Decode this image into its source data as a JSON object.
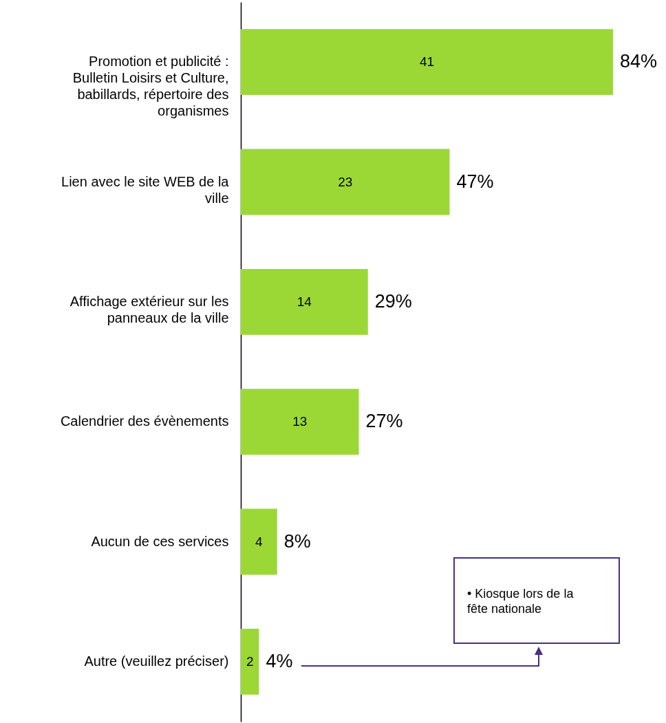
{
  "chart_data": {
    "type": "bar",
    "orientation": "horizontal",
    "categories": [
      "Promotion et publicité : Bulletin Loisirs et Culture, babillards, répertoire des organismes",
      "Lien avec le site WEB de la ville",
      "Affichage extérieur sur les panneaux de la ville",
      "Calendrier des évènements",
      "Aucun de ces services",
      "Autre (veuillez préciser)"
    ],
    "values": [
      41,
      23,
      14,
      13,
      4,
      2
    ],
    "color": "#9bd836",
    "data_labels": true,
    "grid": false,
    "annotations": [
      {
        "text": "84%",
        "x": 41,
        "y": "Promotion et publicité : Bulletin Loisirs et Culture, babillards, répertoire des organismes"
      },
      {
        "text": "47%",
        "x": 23,
        "y": "Lien avec le site WEB de la ville"
      },
      {
        "text": "29%",
        "x": 14,
        "y": "Affichage extérieur sur les panneaux de la ville"
      },
      {
        "text": "27%",
        "x": 13,
        "y": "Calendrier des évènements"
      },
      {
        "text": "8%",
        "x": 4,
        "y": "Aucun de ces services"
      },
      {
        "text": "4%",
        "x": 2,
        "y": "Autre (veuillez préciser)"
      },
      "• Kiosque lors de la fête nationale"
    ]
  }
}
